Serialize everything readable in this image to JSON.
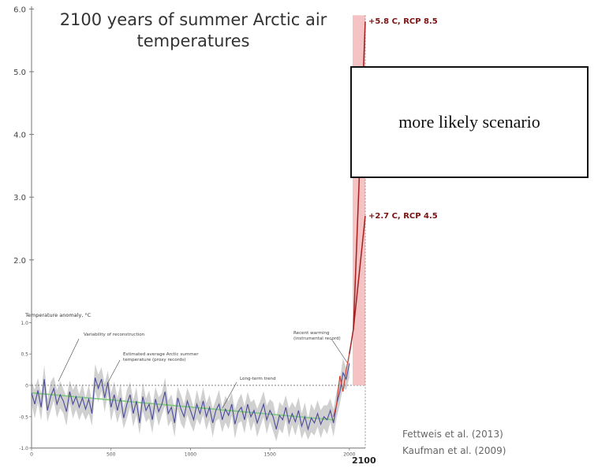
{
  "title": "2100 years of summer Arctic air temperatures",
  "box_label": "more likely scenario",
  "citations": [
    "Fettweis et al. (2013)",
    "Kaufman et al. (2009)"
  ],
  "colors": {
    "proxy": "#4a4a9a",
    "band": "#c8c8c8",
    "trend": "#7dc97d",
    "instrumental": "#d23a2a",
    "projection": "#a32020",
    "projection_band": "#f3b9b9"
  },
  "chart_data": {
    "type": "line",
    "outer_axis": {
      "ticks": [
        2.0,
        3.0,
        4.0,
        5.0,
        6.0
      ],
      "tick_labels": [
        "2.0",
        "3.0",
        "4.0",
        "5.0",
        "6.0"
      ]
    },
    "inset_axis": {
      "ylabel": "Temperature anomaly, °C",
      "y_ticks": [
        1.0,
        0.5,
        0,
        -0.5,
        -1.0
      ],
      "y_tick_labels": [
        "1.0",
        "0.5",
        "0",
        "-0.5",
        "-1.0"
      ],
      "x_ticks": [
        0,
        500,
        1000,
        1500,
        2000
      ],
      "x_tick_labels": [
        "0",
        "500",
        "1000",
        "1500",
        "2000"
      ],
      "xlim": [
        0,
        2100
      ],
      "ylim": [
        -1.0,
        1.0
      ],
      "end_label": "2100"
    },
    "annotations": [
      {
        "text": "Variability of reconstruction"
      },
      {
        "text": "Estimated average Arctic summer temperature (proxy records)"
      },
      {
        "text": "Long-term trend"
      },
      {
        "text": "Recent warming (instrumental record)"
      }
    ],
    "proxy_series": {
      "x": [
        0,
        20,
        40,
        60,
        80,
        100,
        120,
        140,
        160,
        180,
        200,
        220,
        240,
        260,
        280,
        300,
        320,
        340,
        360,
        380,
        400,
        420,
        440,
        460,
        480,
        500,
        520,
        540,
        560,
        580,
        600,
        620,
        640,
        660,
        680,
        700,
        720,
        740,
        760,
        780,
        800,
        820,
        840,
        860,
        880,
        900,
        920,
        940,
        960,
        980,
        1000,
        1020,
        1040,
        1060,
        1080,
        1100,
        1120,
        1140,
        1160,
        1180,
        1200,
        1220,
        1240,
        1260,
        1280,
        1300,
        1320,
        1340,
        1360,
        1380,
        1400,
        1420,
        1440,
        1460,
        1480,
        1500,
        1520,
        1540,
        1560,
        1580,
        1600,
        1620,
        1640,
        1660,
        1680,
        1700,
        1720,
        1740,
        1760,
        1780,
        1800,
        1820,
        1840,
        1860,
        1880,
        1900,
        1920,
        1940,
        1960,
        1980,
        2000
      ],
      "values": [
        -0.12,
        -0.3,
        -0.08,
        -0.35,
        0.1,
        -0.4,
        -0.18,
        -0.05,
        -0.3,
        -0.15,
        -0.25,
        -0.42,
        -0.1,
        -0.3,
        -0.18,
        -0.35,
        -0.2,
        -0.38,
        -0.22,
        -0.45,
        0.12,
        -0.05,
        0.1,
        -0.2,
        0.05,
        -0.35,
        -0.15,
        -0.4,
        -0.2,
        -0.52,
        -0.3,
        -0.15,
        -0.45,
        -0.25,
        -0.6,
        -0.18,
        -0.4,
        -0.3,
        -0.55,
        -0.22,
        -0.42,
        -0.3,
        -0.1,
        -0.45,
        -0.35,
        -0.6,
        -0.2,
        -0.38,
        -0.5,
        -0.25,
        -0.4,
        -0.55,
        -0.3,
        -0.45,
        -0.25,
        -0.5,
        -0.35,
        -0.6,
        -0.4,
        -0.3,
        -0.55,
        -0.38,
        -0.48,
        -0.3,
        -0.62,
        -0.42,
        -0.35,
        -0.55,
        -0.3,
        -0.5,
        -0.4,
        -0.6,
        -0.45,
        -0.3,
        -0.55,
        -0.4,
        -0.5,
        -0.7,
        -0.48,
        -0.55,
        -0.35,
        -0.6,
        -0.45,
        -0.58,
        -0.4,
        -0.65,
        -0.5,
        -0.7,
        -0.52,
        -0.6,
        -0.45,
        -0.62,
        -0.5,
        -0.55,
        -0.4,
        -0.6,
        -0.3,
        -0.1,
        0.2,
        0.1,
        0.35
      ]
    },
    "instrumental_series": {
      "x": [
        1900,
        1920,
        1940,
        1960,
        1980,
        2000
      ],
      "values": [
        -0.5,
        -0.3,
        0.15,
        -0.1,
        0.25,
        0.5
      ]
    },
    "trend_series": {
      "x": [
        0,
        1900
      ],
      "values": [
        -0.12,
        -0.55
      ]
    },
    "projections": [
      {
        "label": "+5.8 C, RCP 8.5",
        "end_x": 2100,
        "end_value": 5.8
      },
      {
        "label": "+2.7 C, RCP 4.5",
        "end_x": 2100,
        "end_value": 2.7
      }
    ],
    "projection_range": [
      0,
      5.9
    ],
    "grid": false
  }
}
